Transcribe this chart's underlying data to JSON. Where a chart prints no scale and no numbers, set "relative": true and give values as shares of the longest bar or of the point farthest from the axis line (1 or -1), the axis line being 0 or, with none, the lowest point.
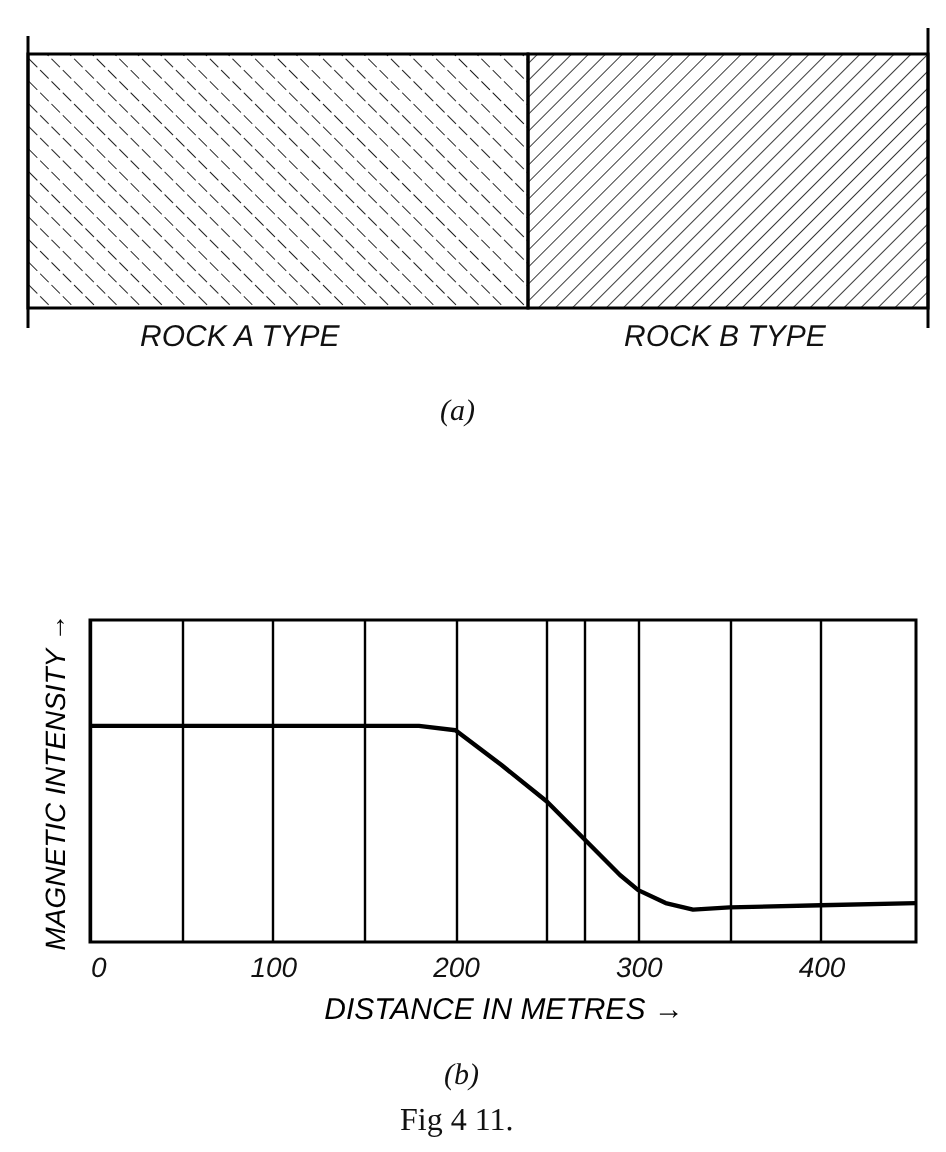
{
  "chart_data": {
    "type": "line",
    "xlabel": "DISTANCE IN METRES →",
    "ylabel": "MAGNETIC INTENSITY →",
    "relative": true,
    "color": "#000000",
    "grid": "x",
    "x": [
      0,
      50,
      100,
      150,
      180,
      200,
      225,
      250,
      270,
      290,
      300,
      315,
      330,
      350,
      400,
      452
    ],
    "values": [
      1,
      1,
      1,
      1,
      1,
      0.98,
      0.82,
      0.65,
      0.48,
      0.31,
      0.24,
      0.18,
      0.15,
      0.16,
      0.17,
      0.18
    ],
    "xlim": [
      0,
      452
    ],
    "xticks": [
      0,
      {
        "value": 50,
        "label": null
      },
      100,
      {
        "value": 150,
        "label": null
      },
      200,
      {
        "value": 250,
        "label": null
      },
      {
        "value": 270,
        "label": null
      },
      300,
      {
        "value": 350,
        "label": null
      },
      400
    ],
    "annotations": [
      "ROCK A TYPE",
      "ROCK B TYPE",
      "(a)",
      "(b)",
      "Fig 4 11."
    ]
  }
}
